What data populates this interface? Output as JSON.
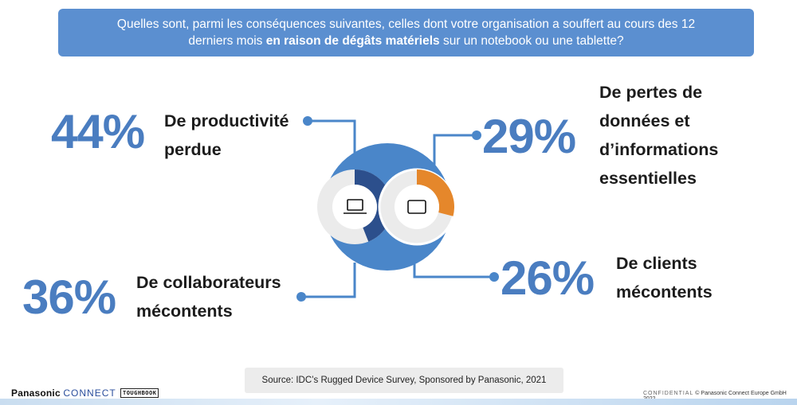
{
  "question": {
    "line1": "Quelles sont, parmi les conséquences suivantes, celles dont votre organisation a souffert au cours des 12",
    "line2_before": "derniers mois ",
    "line2_bold": "en raison de dégâts matériels",
    "line2_after": " sur un notebook ou une tablette?"
  },
  "stats": {
    "productivity": {
      "value": "44%",
      "label_line1": "De productivité",
      "label_line2": "perdue"
    },
    "data_loss": {
      "value": "29%",
      "label_line1": "De pertes de",
      "label_line2": "données et",
      "label_line3": "d’informations",
      "label_line4": "essentielles"
    },
    "staff": {
      "value": "36%",
      "label_line1": "De collaborateurs",
      "label_line2": "mécontents"
    },
    "clients": {
      "value": "26%",
      "label_line1": "De clients",
      "label_line2": "mécontents"
    }
  },
  "graphic": {
    "left_ring_fraction": 0.44,
    "right_ring_fraction": 0.29,
    "left_ring_icon": "laptop-icon",
    "right_ring_icon": "tablet-icon",
    "colors": {
      "outer": "#4a86c9",
      "left_arc": "#2c4f8c",
      "right_arc": "#e5872b",
      "ring_bg": "#ebebeb",
      "connector": "#4a86c9"
    }
  },
  "source": "Source: IDC’s Rugged Device Survey, Sponsored by Panasonic, 2021",
  "footer": {
    "brand_main": "Panasonic",
    "brand_connect": "CONNECT",
    "toughbook": "TOUGHBOOK",
    "confidential": "CONFIDENTIAL",
    "copyright": "© Panasonic Connect Europe GmbH 2022"
  }
}
